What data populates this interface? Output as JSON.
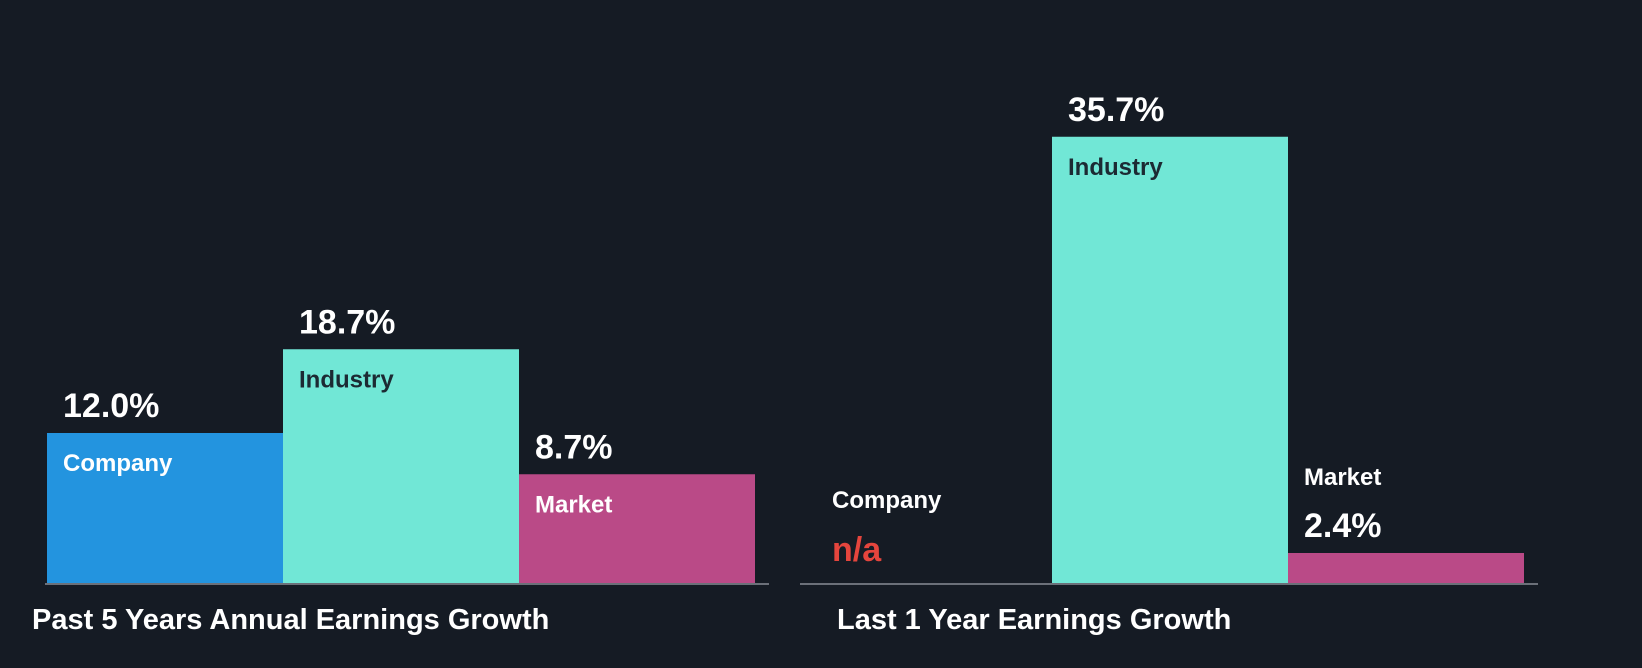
{
  "colors": {
    "background": "#151b24",
    "company": "#2394df",
    "industry": "#71e7d6",
    "market": "#ba4a87",
    "na": "#e5453d",
    "baseline": "#6b7079",
    "text_light": "#ffffff",
    "text_dark": "#1c2a33"
  },
  "chart_data": [
    {
      "type": "bar",
      "title": "Past 5 Years Annual Earnings Growth",
      "categories": [
        "Company",
        "Industry",
        "Market"
      ],
      "values": [
        12.0,
        18.7,
        8.7
      ],
      "value_labels": [
        "12.0%",
        "18.7%",
        "8.7%"
      ],
      "ylim": [
        0,
        40
      ],
      "grid": false,
      "legend": "none"
    },
    {
      "type": "bar",
      "title": "Last 1 Year Earnings Growth",
      "categories": [
        "Company",
        "Industry",
        "Market"
      ],
      "values": [
        null,
        35.7,
        2.4
      ],
      "value_labels": [
        "n/a",
        "35.7%",
        "2.4%"
      ],
      "ylim": [
        0,
        40
      ],
      "grid": false,
      "legend": "none"
    }
  ]
}
